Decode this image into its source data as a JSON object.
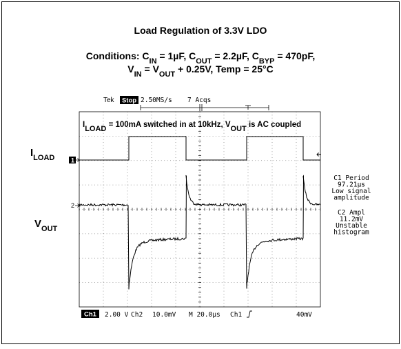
{
  "figure": {
    "title": "Load Regulation of 3.3V LDO",
    "conditions": {
      "line1": [
        "Conditions: C",
        "IN",
        " = 1µF, C",
        "OUT",
        " = 2.2µF, C",
        "BYP",
        " = 470pF,"
      ],
      "line2": [
        "V",
        "IN",
        " = V",
        "OUT",
        " + 0.25V, Temp = 25°C"
      ]
    },
    "scope": {
      "header": {
        "brand": "Tek",
        "state": "Stop",
        "rate": "2.50MS/s",
        "acquisitions": "7 Acqs"
      },
      "annotation": [
        "I",
        "LOAD",
        " = 100mA switched in at 10kHz, V",
        "OUT",
        " is AC coupled"
      ],
      "trace_labels": {
        "ch1": [
          "I",
          "LOAD"
        ],
        "ch2": [
          "V",
          "OUT"
        ]
      },
      "markers": {
        "ch1": "1",
        "ch2": "2"
      },
      "measurements": [
        "C1 Period",
        "97.21µs",
        "Low signal",
        "amplitude",
        "C2 Ampl",
        "11.2mV",
        "Unstable",
        "histogram"
      ],
      "footer": {
        "ch1": "Ch1",
        "ch1_scale": "2.00 V",
        "ch2": "Ch2",
        "ch2_scale": "10.0mV",
        "timebase": "M 20.0µs",
        "trigger_source": "Ch1",
        "trigger_level": "40mV"
      }
    }
  }
}
